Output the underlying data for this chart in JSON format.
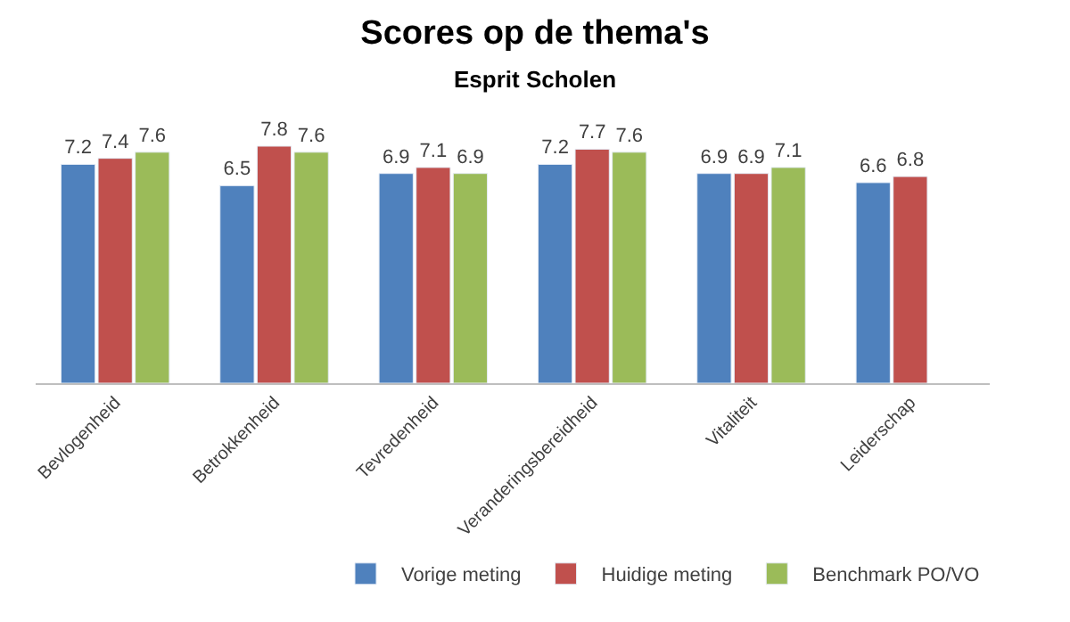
{
  "chart_data": {
    "type": "bar",
    "title": "Scores op de thema's",
    "subtitle": "Esprit Scholen",
    "categories": [
      "Bevlogenheid",
      "Betrokkenheid",
      "Tevredenheid",
      "Veranderingsbereidheid",
      "Vitaliteit",
      "Leiderschap"
    ],
    "series": [
      {
        "name": "Vorige meting",
        "color": "#4f81bd",
        "values": [
          7.2,
          6.5,
          6.9,
          7.2,
          6.9,
          6.6
        ]
      },
      {
        "name": "Huidige meting",
        "color": "#c0504d",
        "values": [
          7.4,
          7.8,
          7.1,
          7.7,
          6.9,
          6.8
        ]
      },
      {
        "name": "Benchmark PO/VO",
        "color": "#9bbb59",
        "values": [
          7.6,
          7.6,
          6.9,
          7.6,
          7.1,
          null
        ]
      }
    ],
    "tick_labels": "x",
    "data_labels": true,
    "legend": "bottom right"
  }
}
